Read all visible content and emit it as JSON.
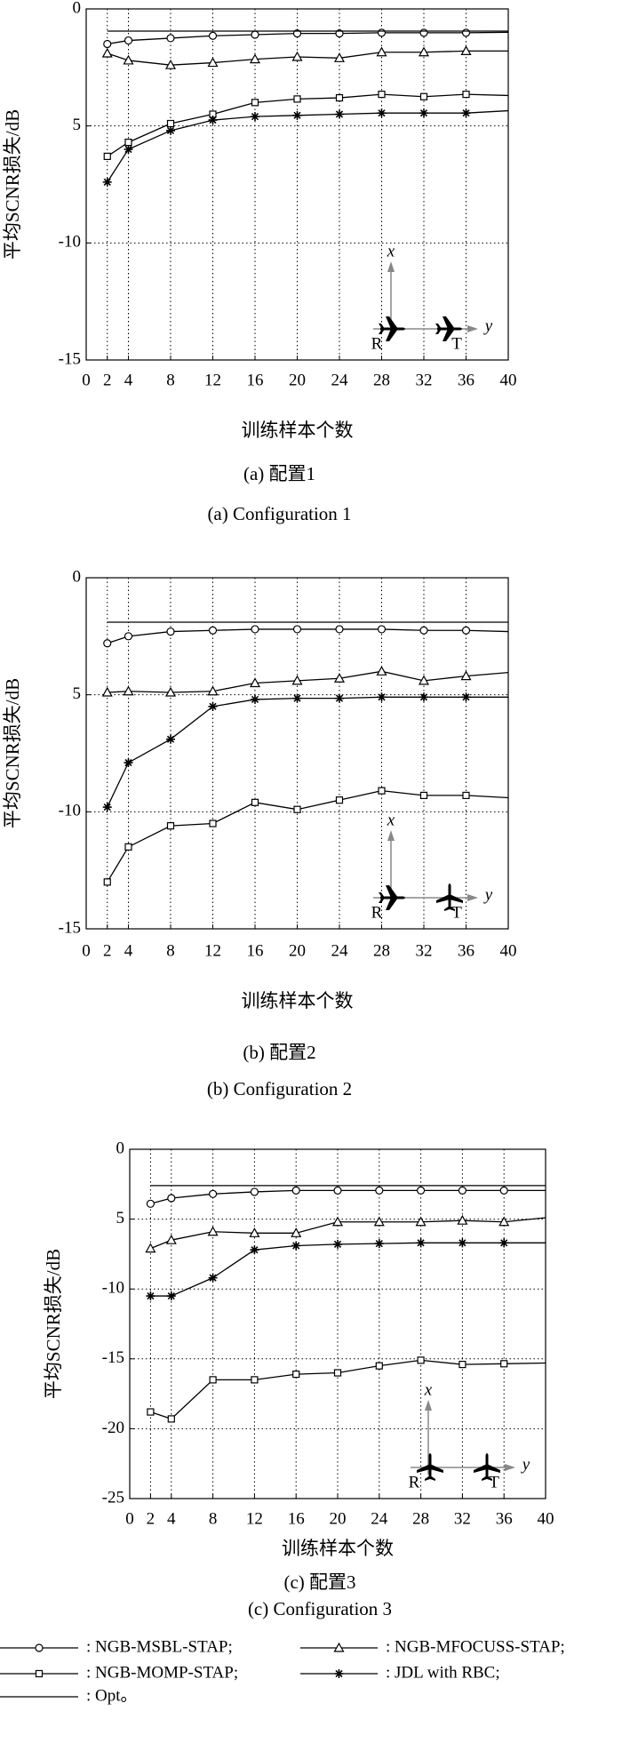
{
  "chart_data": [
    {
      "type": "line",
      "ylabel": "平均SCNR损失/dB",
      "xlabel": "训练样本个数",
      "caption_cn": "(a) 配置1",
      "caption_en": "(a) Configuration 1",
      "inset_labels": [
        "x",
        "y",
        "R",
        "T"
      ],
      "x": [
        2,
        4,
        8,
        12,
        16,
        20,
        24,
        28,
        32,
        36,
        40
      ],
      "xlim": [
        0,
        40
      ],
      "xticks": [
        0,
        2,
        4,
        8,
        12,
        16,
        20,
        24,
        28,
        32,
        36,
        40
      ],
      "ylim": [
        -15,
        0
      ],
      "yticks": [
        0,
        {
          "value": -5,
          "label": "5"
        },
        -10,
        -15
      ],
      "grid": true,
      "series": [
        {
          "marker": "circle",
          "color": "#000000",
          "values": [
            -1.5,
            -1.35,
            -1.25,
            -1.15,
            -1.1,
            -1.05,
            -1.05,
            -1.02,
            -1.02,
            -1.02,
            -1.0
          ]
        },
        {
          "marker": "triangle",
          "color": "#000000",
          "values": [
            -1.9,
            -2.2,
            -2.4,
            -2.3,
            -2.15,
            -2.05,
            -2.1,
            -1.85,
            -1.85,
            -1.8,
            -1.8
          ]
        },
        {
          "marker": "square",
          "color": "#000000",
          "values": [
            -6.3,
            -5.7,
            -4.9,
            -4.5,
            -4.0,
            -3.85,
            -3.8,
            -3.65,
            -3.75,
            -3.65,
            -3.7
          ]
        },
        {
          "marker": "star",
          "color": "#000000",
          "values": [
            -7.4,
            -6.0,
            -5.2,
            -4.75,
            -4.6,
            -4.55,
            -4.5,
            -4.45,
            -4.45,
            -4.45,
            -4.35
          ]
        },
        {
          "marker": "none",
          "color": "#000000",
          "values": [
            -0.95,
            -0.95,
            -0.95,
            -0.95,
            -0.95,
            -0.95,
            -0.95,
            -0.95,
            -0.95,
            -0.95,
            -0.95
          ]
        }
      ]
    },
    {
      "type": "line",
      "ylabel": "平均SCNR损失/dB",
      "xlabel": "训练样本个数",
      "caption_cn": "(b) 配置2",
      "caption_en": "(b) Configuration 2",
      "inset_labels": [
        "x",
        "y",
        "R",
        "T"
      ],
      "x": [
        2,
        4,
        8,
        12,
        16,
        20,
        24,
        28,
        32,
        36,
        40
      ],
      "xlim": [
        0,
        40
      ],
      "xticks": [
        0,
        2,
        4,
        8,
        12,
        16,
        20,
        24,
        28,
        32,
        36,
        40
      ],
      "ylim": [
        -15,
        0
      ],
      "yticks": [
        0,
        {
          "value": -5,
          "label": "5"
        },
        -10,
        -15
      ],
      "grid": true,
      "series": [
        {
          "marker": "circle",
          "color": "#000000",
          "values": [
            -2.8,
            -2.5,
            -2.3,
            -2.25,
            -2.2,
            -2.2,
            -2.2,
            -2.2,
            -2.25,
            -2.25,
            -2.3
          ]
        },
        {
          "marker": "triangle",
          "color": "#000000",
          "values": [
            -4.9,
            -4.85,
            -4.9,
            -4.85,
            -4.5,
            -4.4,
            -4.3,
            -4.0,
            -4.4,
            -4.2,
            -4.05
          ]
        },
        {
          "marker": "square",
          "color": "#000000",
          "values": [
            -13.0,
            -11.5,
            -10.6,
            -10.5,
            -9.6,
            -9.9,
            -9.5,
            -9.1,
            -9.3,
            -9.3,
            -9.4
          ]
        },
        {
          "marker": "star",
          "color": "#000000",
          "values": [
            -9.8,
            -7.9,
            -6.9,
            -5.5,
            -5.2,
            -5.15,
            -5.15,
            -5.1,
            -5.1,
            -5.1,
            -5.1
          ]
        },
        {
          "marker": "none",
          "color": "#000000",
          "values": [
            -1.9,
            -1.9,
            -1.9,
            -1.9,
            -1.9,
            -1.9,
            -1.9,
            -1.9,
            -1.9,
            -1.9,
            -1.9
          ]
        }
      ]
    },
    {
      "type": "line",
      "ylabel": "平均SCNR损失/dB",
      "xlabel": "训练样本个数",
      "caption_cn": "(c) 配置3",
      "caption_en": "(c) Configuration 3",
      "inset_labels": [
        "x",
        "y",
        "R",
        "T"
      ],
      "x": [
        2,
        4,
        8,
        12,
        16,
        20,
        24,
        28,
        32,
        36,
        40
      ],
      "xlim": [
        0,
        40
      ],
      "xticks": [
        0,
        2,
        4,
        8,
        12,
        16,
        20,
        24,
        28,
        32,
        36,
        40
      ],
      "ylim": [
        -25,
        0
      ],
      "yticks": [
        0,
        {
          "value": -5,
          "label": "5"
        },
        -10,
        -15,
        -20,
        -25
      ],
      "grid": true,
      "series": [
        {
          "marker": "circle",
          "color": "#000000",
          "values": [
            -3.9,
            -3.5,
            -3.2,
            -3.05,
            -2.95,
            -2.95,
            -2.95,
            -2.95,
            -2.95,
            -2.95,
            -2.95
          ]
        },
        {
          "marker": "triangle",
          "color": "#000000",
          "values": [
            -7.1,
            -6.5,
            -5.9,
            -6.0,
            -6.0,
            -5.2,
            -5.2,
            -5.2,
            -5.1,
            -5.2,
            -4.9
          ]
        },
        {
          "marker": "square",
          "color": "#000000",
          "values": [
            -18.8,
            -19.3,
            -16.5,
            -16.5,
            -16.1,
            -16.0,
            -15.5,
            -15.1,
            -15.4,
            -15.35,
            -15.3
          ]
        },
        {
          "marker": "star",
          "color": "#000000",
          "values": [
            -10.5,
            -10.5,
            -9.2,
            -7.2,
            -6.9,
            -6.8,
            -6.75,
            -6.7,
            -6.7,
            -6.7,
            -6.7
          ]
        },
        {
          "marker": "none",
          "color": "#000000",
          "values": [
            -2.6,
            -2.6,
            -2.6,
            -2.6,
            -2.6,
            -2.6,
            -2.6,
            -2.6,
            -2.6,
            -2.6,
            -2.6
          ]
        }
      ]
    }
  ],
  "legend": [
    {
      "label": ": NGB-MSBL-STAP;",
      "marker": "circle"
    },
    {
      "label": ": NGB-MFOCUSS-STAP;",
      "marker": "triangle"
    },
    {
      "label": ": NGB-MOMP-STAP;",
      "marker": "square"
    },
    {
      "label": ": JDL with RBC;",
      "marker": "star"
    },
    {
      "label": ": Opt。",
      "marker": "none"
    }
  ]
}
